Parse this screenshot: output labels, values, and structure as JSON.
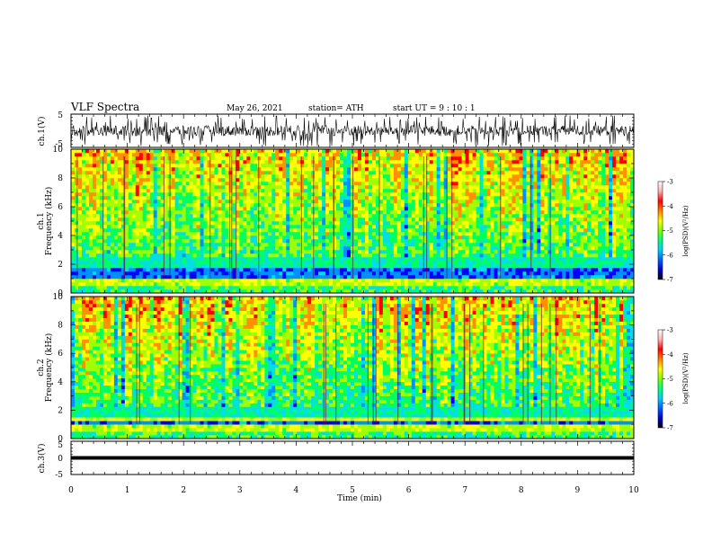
{
  "header": {
    "title": "VLF Spectra",
    "date": "May 26, 2021",
    "station": "station= ATH",
    "start": "start  UT =   9 : 10 : 1"
  },
  "colors": {
    "spectrum": [
      "#000090",
      "#0000ff",
      "#0090ff",
      "#00e0e0",
      "#00ff60",
      "#a0ff00",
      "#ffff00",
      "#ff9000",
      "#ff0000",
      "#ffffff"
    ],
    "waveform": "#000000",
    "frame": "#000000"
  },
  "chart_data": [
    {
      "type": "line",
      "panel": "ch1-waveform",
      "ylabel": "ch.1(V)",
      "ylim": [
        -5,
        5
      ],
      "yticks": [
        "5",
        "-5"
      ],
      "xlim": [
        0,
        10
      ],
      "description_values": {
        "approx_amplitude_range_V": [
          -3,
          3
        ]
      }
    },
    {
      "type": "heatmap",
      "panel": "ch1-spectrogram",
      "ylabel": "ch.1\nFrequency (kHz)",
      "ylabel_lines": [
        "ch.1",
        "Frequency (kHz)"
      ],
      "ylim": [
        0,
        10
      ],
      "yticks": [
        "0",
        "2",
        "4",
        "6",
        "8",
        "10"
      ],
      "xlim": [
        0,
        10
      ],
      "colorbar": {
        "label": "log(PSD)(V²/Hz)",
        "range": [
          -7,
          -3
        ],
        "ticks": [
          "-3",
          "-4",
          "-5",
          "-6",
          "-7"
        ]
      }
    },
    {
      "type": "heatmap",
      "panel": "ch2-spectrogram",
      "ylabel": "ch.2\nFrequency (kHz)",
      "ylabel_lines": [
        "ch.2",
        "Frequency (kHz)"
      ],
      "ylim": [
        0,
        10
      ],
      "yticks": [
        "0",
        "2",
        "4",
        "6",
        "8",
        "10"
      ],
      "xlim": [
        0,
        10
      ],
      "colorbar": {
        "label": "log(PSD)(V²/Hz)",
        "range": [
          -7,
          -3
        ],
        "ticks": [
          "-3",
          "-4",
          "-5",
          "-6",
          "-7"
        ]
      }
    },
    {
      "type": "line",
      "panel": "ch3-waveform",
      "ylabel": "ch.3(V)",
      "ylim": [
        -5,
        5
      ],
      "yticks": [
        "5",
        "0",
        "-5"
      ],
      "xlim": [
        0,
        10
      ],
      "description_values": {
        "approx_level_V": 0
      }
    }
  ],
  "xaxis": {
    "label": "Time (min)",
    "ticks": [
      "0",
      "1",
      "2",
      "3",
      "4",
      "5",
      "6",
      "7",
      "8",
      "9",
      "10"
    ],
    "range": [
      0,
      10
    ]
  }
}
